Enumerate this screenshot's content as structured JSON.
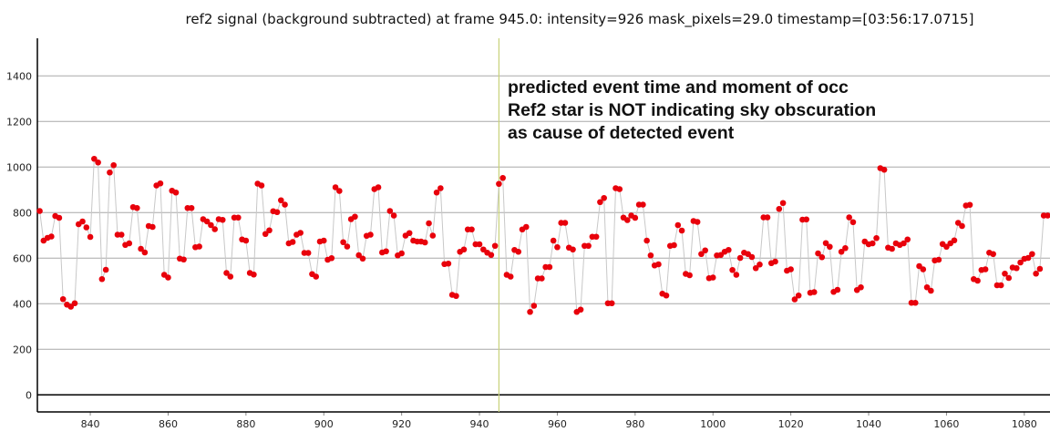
{
  "chart_data": {
    "type": "line",
    "title": "ref2 signal (background subtracted) at frame 945.0: intensity=926 mask_pixels=29.0 timestamp=[03:56:17.0715]",
    "xlabel": "",
    "ylabel": "",
    "xlim": [
      826.4,
      1086.6
    ],
    "ylim": [
      -75,
      1565
    ],
    "grid": true,
    "xticks": [
      840,
      860,
      880,
      900,
      920,
      940,
      960,
      980,
      1000,
      1020,
      1040,
      1060,
      1080
    ],
    "yticks": [
      0,
      200,
      400,
      600,
      800,
      1000,
      1200,
      1400
    ],
    "marker_frame": 945,
    "annotation": [
      "predicted event time and moment of occ",
      "Ref2 star is NOT indicating sky obscuration",
      "as cause of detected event"
    ],
    "colors": {
      "points": "#e8000b",
      "line": "#c8c8c8",
      "marker": "#c8d27a",
      "grid": "#a8a8a8",
      "axis": "#000000"
    },
    "x_start": 827,
    "values": [
      807,
      677,
      689,
      695,
      785,
      777,
      420,
      396,
      387,
      402,
      749,
      761,
      735,
      693,
      1036,
      1020,
      508,
      549,
      976,
      1008,
      703,
      703,
      658,
      665,
      824,
      820,
      641,
      625,
      741,
      737,
      919,
      928,
      527,
      515,
      896,
      888,
      598,
      594,
      820,
      820,
      648,
      651,
      771,
      761,
      745,
      727,
      771,
      768,
      535,
      519,
      778,
      778,
      682,
      677,
      535,
      528,
      927,
      919,
      706,
      722,
      806,
      802,
      854,
      835,
      665,
      671,
      703,
      711,
      623,
      623,
      530,
      519,
      673,
      677,
      593,
      600,
      911,
      895,
      670,
      651,
      771,
      782,
      613,
      598,
      698,
      703,
      903,
      911,
      625,
      630,
      807,
      787,
      612,
      621,
      699,
      710,
      677,
      673,
      673,
      669,
      753,
      699,
      888,
      907,
      574,
      576,
      439,
      434,
      628,
      638,
      726,
      726,
      661,
      661,
      638,
      624,
      614,
      654,
      926,
      952,
      527,
      519,
      636,
      628,
      726,
      737,
      364,
      391,
      511,
      511,
      561,
      561,
      677,
      648,
      755,
      755,
      646,
      638,
      364,
      374,
      654,
      654,
      694,
      694,
      846,
      864,
      402,
      402,
      907,
      903,
      778,
      767,
      787,
      777,
      835,
      835,
      677,
      612,
      568,
      573,
      444,
      436,
      654,
      657,
      745,
      721,
      531,
      525,
      763,
      759,
      618,
      634,
      512,
      515,
      612,
      614,
      628,
      636,
      548,
      527,
      601,
      624,
      618,
      605,
      556,
      572,
      779,
      779,
      578,
      585,
      816,
      842,
      545,
      551,
      419,
      436,
      769,
      770,
      448,
      451,
      621,
      604,
      666,
      650,
      452,
      461,
      628,
      644,
      779,
      758,
      460,
      472,
      673,
      661,
      665,
      688,
      995,
      988,
      646,
      641,
      665,
      658,
      665,
      682,
      404,
      404,
      565,
      551,
      472,
      457,
      590,
      593,
      662,
      650,
      665,
      678,
      755,
      741,
      831,
      834,
      508,
      501,
      548,
      551,
      624,
      618,
      481,
      481,
      532,
      513,
      559,
      556,
      581,
      597,
      601,
      618,
      532,
      553,
      787,
      787
    ]
  }
}
